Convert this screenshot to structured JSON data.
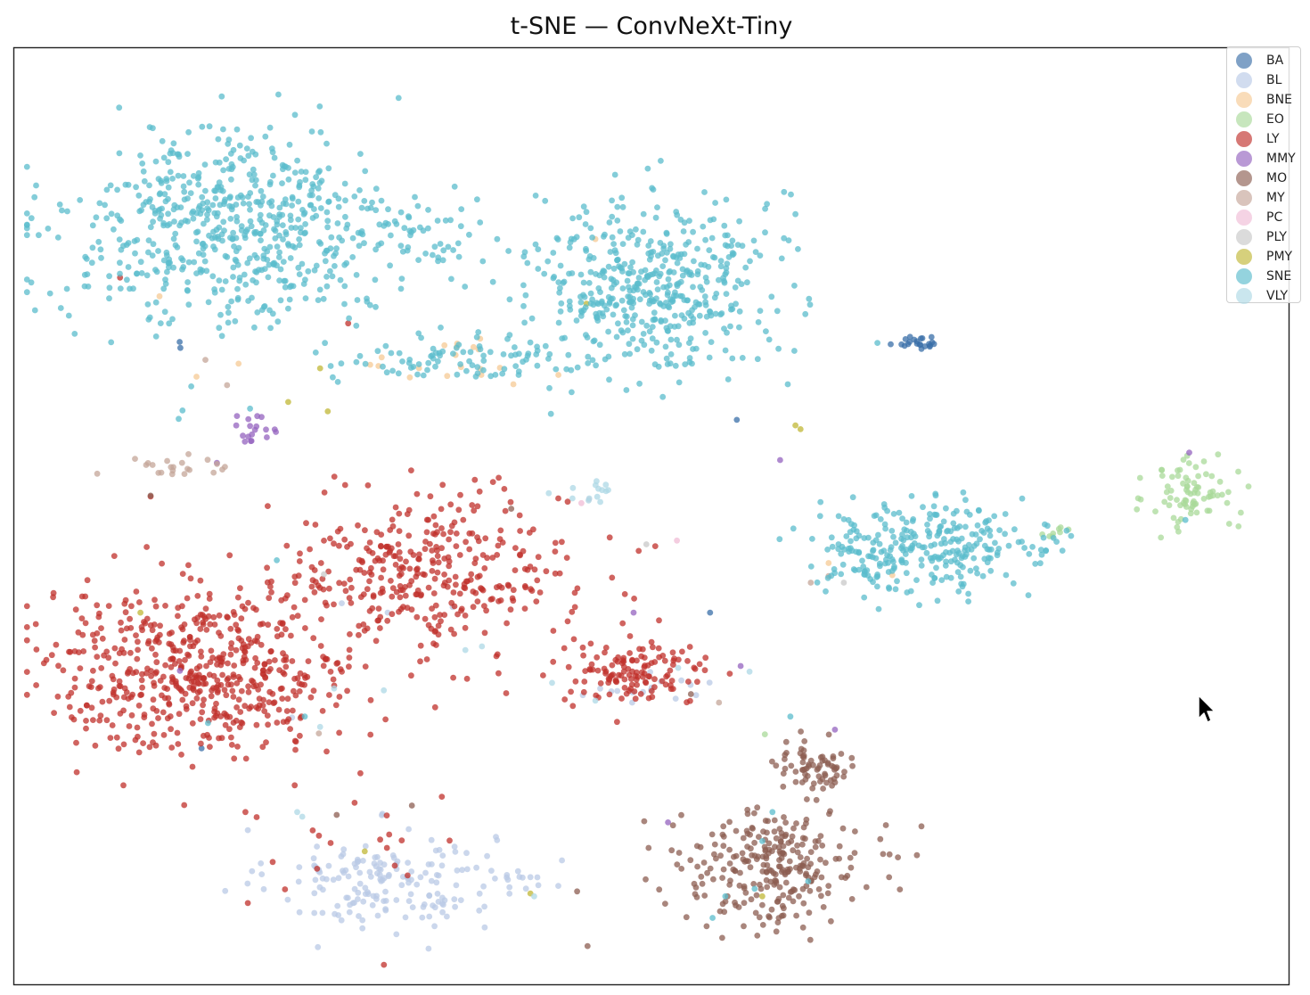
{
  "chart_data": {
    "type": "scatter",
    "title": "t-SNE — ConvNeXt-Tiny",
    "xlabel": "",
    "ylabel": "",
    "xlim": [
      0,
      100
    ],
    "ylim": [
      0,
      100
    ],
    "axes_visible": false,
    "grid": false,
    "legend_position": "top-right",
    "series": [
      {
        "name": "BA",
        "color": "#3a6fa8",
        "clusters": [
          {
            "cx": 70.8,
            "cy": 68.6,
            "sx": 1.2,
            "sy": 0.4,
            "n": 22
          },
          {
            "cx": 12.9,
            "cy": 68.2,
            "sx": 0.4,
            "sy": 0.3,
            "n": 2
          }
        ],
        "points": [
          [
            54.6,
            39.7
          ],
          [
            14.7,
            25.2
          ],
          [
            56.7,
            60.3
          ]
        ]
      },
      {
        "name": "BL",
        "color": "#b9c9e6",
        "clusters": [
          {
            "cx": 28.9,
            "cy": 11.1,
            "sx": 4.6,
            "sy": 2.9,
            "n": 170
          },
          {
            "cx": 40.0,
            "cy": 11.3,
            "sx": 1.6,
            "sy": 0.8,
            "n": 14
          },
          {
            "cx": 50.3,
            "cy": 31.3,
            "sx": 3.1,
            "sy": 0.8,
            "n": 16
          }
        ],
        "points": [
          [
            25.7,
            40.7
          ],
          [
            29.3,
            39.7
          ],
          [
            34.4,
            40.3
          ],
          [
            21.8,
            28.5
          ]
        ]
      },
      {
        "name": "BNE",
        "color": "#f6c994",
        "clusters": [
          {
            "cx": 35.0,
            "cy": 66.0,
            "sx": 3.0,
            "sy": 1.8,
            "n": 18
          }
        ],
        "points": [
          [
            11.4,
            73.5
          ],
          [
            42.7,
            65.1
          ],
          [
            14.3,
            64.9
          ],
          [
            17.6,
            66.3
          ],
          [
            63.9,
            45.0
          ],
          [
            68.9,
            43.7
          ],
          [
            45.6,
            79.6
          ]
        ]
      },
      {
        "name": "EO",
        "color": "#a9d99a",
        "clusters": [
          {
            "cx": 92.5,
            "cy": 52.5,
            "sx": 1.8,
            "sy": 2.2,
            "n": 80
          },
          {
            "cx": 81.9,
            "cy": 48.6,
            "sx": 0.7,
            "sy": 1.0,
            "n": 8
          }
        ],
        "points": [
          [
            58.9,
            26.7
          ]
        ]
      },
      {
        "name": "LY",
        "color": "#c0302b",
        "clusters": [
          {
            "cx": 14.6,
            "cy": 33.5,
            "sx": 6.6,
            "sy": 4.6,
            "n": 560
          },
          {
            "cx": 32.3,
            "cy": 44.0,
            "sx": 5.9,
            "sy": 4.4,
            "n": 360
          },
          {
            "cx": 48.7,
            "cy": 33.2,
            "sx": 3.0,
            "sy": 1.8,
            "n": 130
          },
          {
            "cx": 26.6,
            "cy": 14.3,
            "sx": 4.5,
            "sy": 4.2,
            "n": 22
          }
        ],
        "points": [
          [
            8.3,
            75.5
          ],
          [
            26.2,
            70.6
          ],
          [
            38.6,
            31.1
          ],
          [
            41.5,
            33.0
          ],
          [
            49.0,
            46.3
          ],
          [
            50.3,
            46.8
          ],
          [
            10.7,
            52.1
          ],
          [
            32.9,
            36.4
          ]
        ]
      },
      {
        "name": "MMY",
        "color": "#9463bf",
        "clusters": [
          {
            "cx": 18.5,
            "cy": 59.3,
            "sx": 1.6,
            "sy": 0.9,
            "n": 18
          }
        ],
        "points": [
          [
            13.0,
            33.5
          ],
          [
            48.6,
            39.7
          ],
          [
            57.0,
            34.0
          ],
          [
            60.1,
            56.0
          ],
          [
            92.2,
            56.8
          ],
          [
            51.3,
            17.3
          ],
          [
            64.4,
            27.2
          ],
          [
            15.9,
            55.7
          ]
        ]
      },
      {
        "name": "MO",
        "color": "#8c5e52",
        "clusters": [
          {
            "cx": 59.5,
            "cy": 12.6,
            "sx": 3.9,
            "sy": 3.2,
            "n": 270
          },
          {
            "cx": 62.8,
            "cy": 23.1,
            "sx": 1.9,
            "sy": 1.6,
            "n": 70
          }
        ],
        "points": [
          [
            25.3,
            18.1
          ],
          [
            31.2,
            19.1
          ],
          [
            10.7,
            52.2
          ],
          [
            53.1,
            31.0
          ],
          [
            39.0,
            50.8
          ]
        ]
      },
      {
        "name": "MY",
        "color": "#c4a598",
        "clusters": [
          {
            "cx": 12.6,
            "cy": 55.3,
            "sx": 2.0,
            "sy": 0.8,
            "n": 22
          }
        ],
        "points": [
          [
            15.0,
            66.7
          ],
          [
            16.7,
            64.0
          ],
          [
            62.5,
            42.9
          ],
          [
            63.9,
            43.6
          ],
          [
            55.3,
            30.1
          ],
          [
            23.9,
            26.8
          ]
        ]
      },
      {
        "name": "PC",
        "color": "#f0bcd6",
        "clusters": [],
        "points": [
          [
            44.5,
            51.4
          ],
          [
            45.1,
            51.8
          ],
          [
            52.0,
            47.4
          ]
        ]
      },
      {
        "name": "PLY",
        "color": "#c8c8c8",
        "clusters": [],
        "points": [
          [
            24.3,
            43.8
          ],
          [
            49.6,
            47.0
          ],
          [
            65.1,
            42.9
          ]
        ]
      },
      {
        "name": "PMY",
        "color": "#c0b735",
        "clusters": [],
        "points": [
          [
            24.0,
            65.8
          ],
          [
            24.6,
            61.2
          ],
          [
            44.9,
            72.7
          ],
          [
            61.3,
            59.7
          ],
          [
            61.7,
            59.3
          ],
          [
            9.9,
            39.7
          ],
          [
            27.5,
            14.2
          ],
          [
            40.5,
            9.7
          ],
          [
            58.7,
            9.4
          ],
          [
            21.5,
            62.2
          ]
        ]
      },
      {
        "name": "SNE",
        "color": "#5bbccc",
        "clusters": [
          {
            "cx": 17.2,
            "cy": 80.5,
            "sx": 7.2,
            "sy": 5.4,
            "n": 620
          },
          {
            "cx": 50.0,
            "cy": 74.9,
            "sx": 5.0,
            "sy": 5.0,
            "n": 480
          },
          {
            "cx": 35.0,
            "cy": 66.8,
            "sx": 5.2,
            "sy": 1.4,
            "n": 90
          },
          {
            "cx": 31.2,
            "cy": 79.5,
            "sx": 2.8,
            "sy": 2.0,
            "n": 35
          },
          {
            "cx": 71.1,
            "cy": 46.7,
            "sx": 4.2,
            "sy": 2.5,
            "n": 290
          },
          {
            "cx": 81.5,
            "cy": 47.6,
            "sx": 0.8,
            "sy": 1.1,
            "n": 12
          }
        ],
        "points": [
          [
            13.2,
            61.3
          ],
          [
            12.9,
            60.4
          ],
          [
            18.5,
            61.5
          ],
          [
            55.8,
            9.4
          ],
          [
            54.8,
            7.1
          ],
          [
            58.1,
            10.2
          ],
          [
            58.7,
            15.3
          ],
          [
            59.5,
            18.4
          ],
          [
            62.3,
            11.0
          ],
          [
            60.9,
            28.6
          ],
          [
            91.9,
            49.6
          ],
          [
            60.7,
            64.1
          ],
          [
            20.6,
            45.3
          ],
          [
            15.2,
            27.9
          ],
          [
            22.8,
            28.6
          ]
        ]
      },
      {
        "name": "VLY",
        "color": "#add8e5",
        "clusters": [
          {
            "cx": 44.9,
            "cy": 52.3,
            "sx": 1.3,
            "sy": 0.7,
            "n": 14
          }
        ],
        "points": [
          [
            22.2,
            18.4
          ],
          [
            22.6,
            17.9
          ],
          [
            24.0,
            27.5
          ],
          [
            25.1,
            31.6
          ],
          [
            29.0,
            31.4
          ],
          [
            35.4,
            35.7
          ],
          [
            42.2,
            32.2
          ],
          [
            45.6,
            30.3
          ],
          [
            52.1,
            33.8
          ],
          [
            57.7,
            33.4
          ],
          [
            40.8,
            9.4
          ],
          [
            36.7,
            36.1
          ]
        ]
      }
    ]
  },
  "legend": {
    "items": [
      "BA",
      "BL",
      "BNE",
      "EO",
      "LY",
      "MMY",
      "MO",
      "MY",
      "PC",
      "PLY",
      "PMY",
      "SNE",
      "VLY"
    ]
  }
}
